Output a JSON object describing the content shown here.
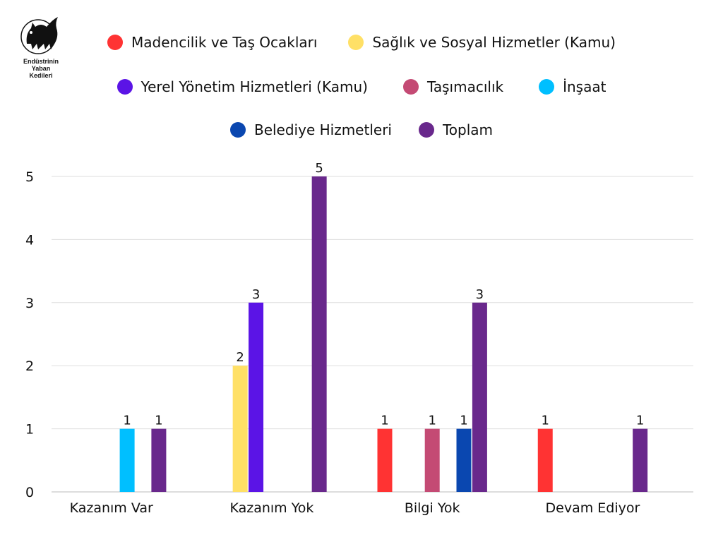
{
  "logo": {
    "text": [
      "Endüstrinin",
      "Yaban",
      "Kedileri"
    ]
  },
  "chart_data": {
    "type": "bar",
    "title": "",
    "xlabel": "",
    "ylabel": "",
    "ylim": [
      0,
      5
    ],
    "yticks": [
      0,
      1,
      2,
      3,
      4,
      5
    ],
    "grid": true,
    "legend_position": "top",
    "categories": [
      "Kazanım Var",
      "Kazanım Yok",
      "Bilgi Yok",
      "Devam Ediyor"
    ],
    "series": [
      {
        "name": "Madencilik ve Taş Ocakları",
        "color": "#ff3333",
        "values": [
          null,
          null,
          1,
          1
        ]
      },
      {
        "name": "Sağlık ve Sosyal Hizmetler (Kamu)",
        "color": "#ffe066",
        "values": [
          null,
          2,
          null,
          null
        ]
      },
      {
        "name": "Yerel Yönetim Hizmetleri (Kamu)",
        "color": "#5b14e6",
        "values": [
          null,
          3,
          null,
          null
        ]
      },
      {
        "name": "Taşımacılık",
        "color": "#c44a74",
        "values": [
          null,
          null,
          1,
          null
        ]
      },
      {
        "name": "İnşaat",
        "color": "#00bfff",
        "values": [
          1,
          null,
          null,
          null
        ]
      },
      {
        "name": "Belediye Hizmetleri",
        "color": "#0a47b0",
        "values": [
          null,
          null,
          1,
          null
        ]
      },
      {
        "name": "Toplam",
        "color": "#69288c",
        "values": [
          1,
          5,
          3,
          1
        ]
      }
    ]
  }
}
